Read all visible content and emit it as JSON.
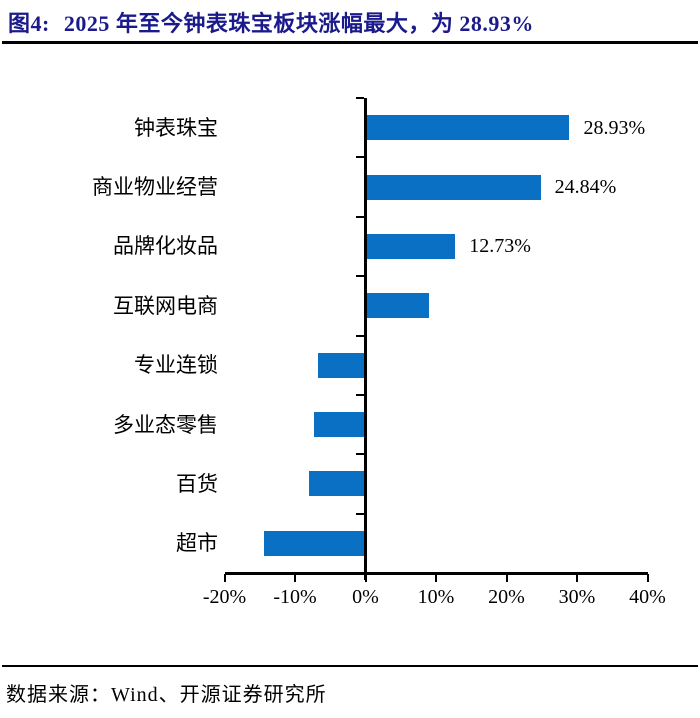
{
  "title": {
    "tag": "图4:",
    "text": "2025 年至今钟表珠宝板块涨幅最大，为 28.93%"
  },
  "chart_data": {
    "type": "bar",
    "orientation": "horizontal",
    "title": "2025 年至今钟表珠宝板块涨幅最大，为 28.93%",
    "categories": [
      "钟表珠宝",
      "商业物业经营",
      "品牌化妆品",
      "互联网电商",
      "专业连锁",
      "多业态零售",
      "百货",
      "超市"
    ],
    "values": [
      28.93,
      24.84,
      12.73,
      9.0,
      -6.7,
      -7.3,
      -8.0,
      -14.4
    ],
    "data_labels": [
      "28.93%",
      "24.84%",
      "12.73%",
      null,
      null,
      null,
      null,
      null
    ],
    "xlabel": "",
    "ylabel": "",
    "xlim": [
      -20,
      40
    ],
    "x_tick_values": [
      -20,
      -10,
      0,
      10,
      20,
      30,
      40
    ],
    "x_tick_labels": [
      "-20%",
      "-10%",
      "0%",
      "10%",
      "20%",
      "30%",
      "40%"
    ],
    "grid": false,
    "legend": "none",
    "bar_color": "#0A70C3",
    "axis_color": "#000000"
  },
  "footer": {
    "source": "数据来源：Wind、开源证券研究所"
  },
  "colors": {
    "title": "#1B1A8C",
    "bar": "#0A70C3",
    "axis": "#000000",
    "background": "#ffffff"
  }
}
